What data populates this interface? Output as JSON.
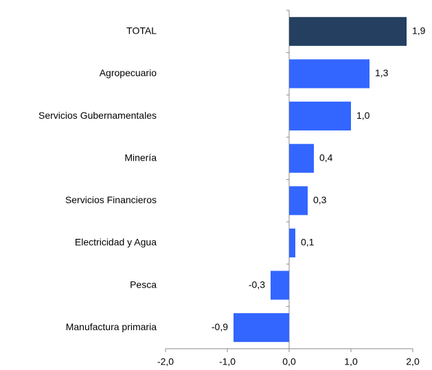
{
  "chart_data": {
    "type": "hbar",
    "categories": [
      "TOTAL",
      "Agropecuario",
      "Servicios Gubernamentales",
      "Minería",
      "Servicios Financieros",
      "Electricidad y Agua",
      "Pesca",
      "Manufactura primaria"
    ],
    "values": [
      1.9,
      1.3,
      1.0,
      0.4,
      0.3,
      0.1,
      -0.3,
      -0.9
    ],
    "value_labels": [
      "1,9",
      "1,3",
      "1,0",
      "0,4",
      "0,3",
      "0,1",
      "-0,3",
      "-0,9"
    ],
    "colors": [
      "#243f60",
      "#3366ff",
      "#3366ff",
      "#3366ff",
      "#3366ff",
      "#3366ff",
      "#3366ff",
      "#3366ff"
    ],
    "xlim": [
      -2,
      2
    ],
    "xticks": [
      {
        "value": -2,
        "label": "-2,0"
      },
      {
        "value": -1,
        "label": "-1,0"
      },
      {
        "value": 0,
        "label": "0,0"
      },
      {
        "value": 1,
        "label": "1,0"
      },
      {
        "value": 2,
        "label": "2,0"
      }
    ]
  }
}
